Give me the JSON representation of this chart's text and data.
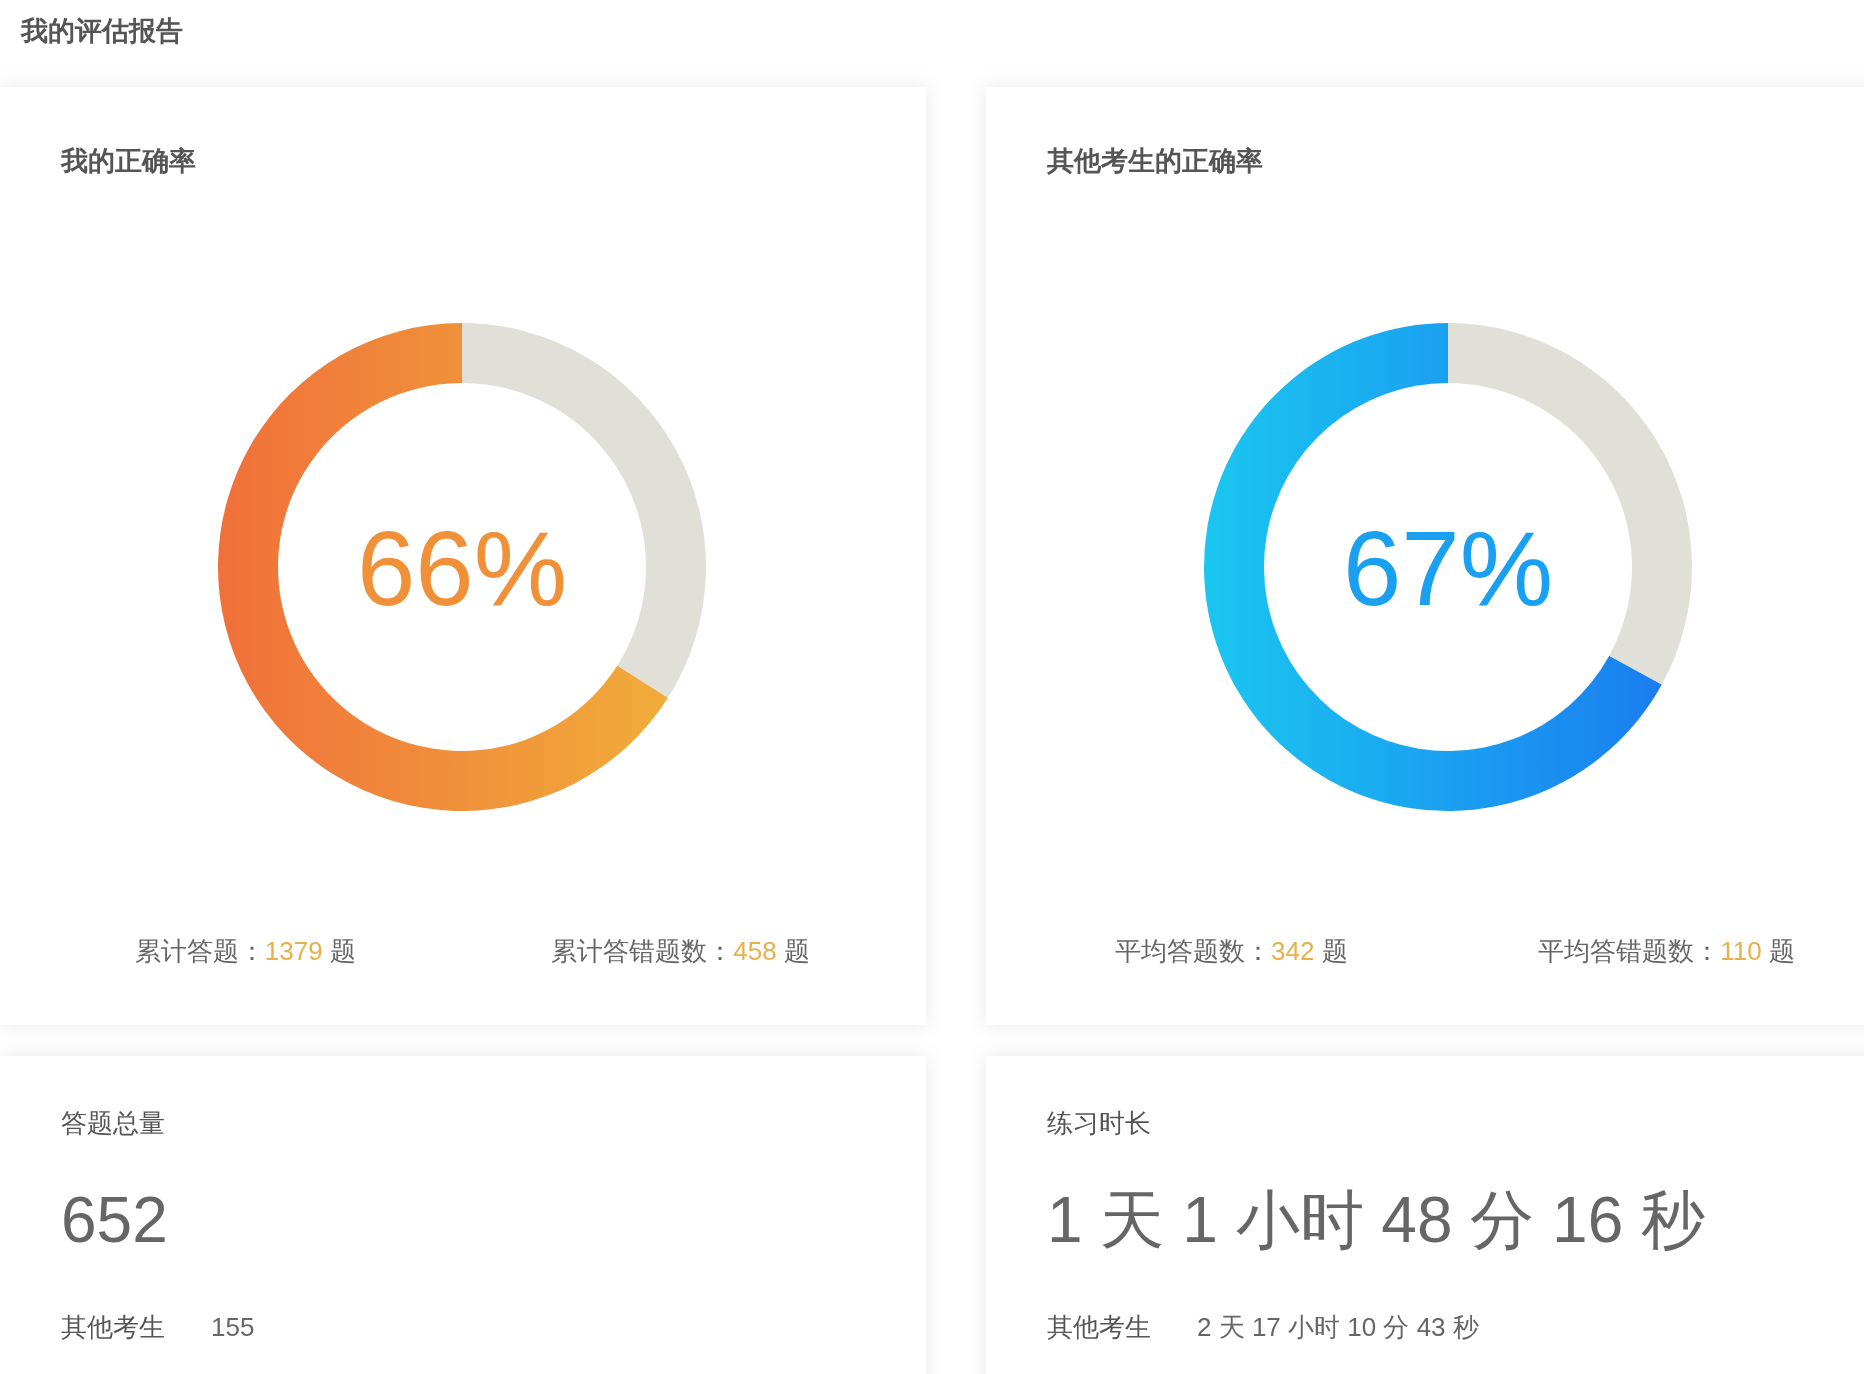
{
  "chart_data": [
    {
      "type": "other",
      "title": "我的评估报告"
    },
    {
      "type": "donut",
      "title": "我的正确率",
      "categories": [
        null,
        null
      ],
      "values": [
        66,
        34
      ],
      "colors": [
        "#f0913a",
        "#e0dfd8"
      ],
      "value_labels": [
        "66%",
        null
      ],
      "annotations": [
        "累计答题：1379 题",
        "累计答错题数：458 题"
      ]
    },
    {
      "type": "donut",
      "title": "其他考生的正确率",
      "categories": [
        null,
        null
      ],
      "values": [
        67,
        33
      ],
      "colors": [
        "#1aa0f0",
        "#e0dfd8"
      ],
      "value_labels": [
        "67%",
        null
      ],
      "annotations": [
        "平均答题数：342 题",
        "平均答错题数：110 题"
      ]
    },
    {
      "type": "other",
      "title": "答题总量",
      "annotations": [
        "652",
        "其他考生",
        "155"
      ]
    },
    {
      "type": "other",
      "title": "练习时长",
      "annotations": [
        "1 天 1 小时 48 分 16 秒",
        "其他考生",
        "2 天 17 小时 10 分 43 秒"
      ]
    }
  ]
}
